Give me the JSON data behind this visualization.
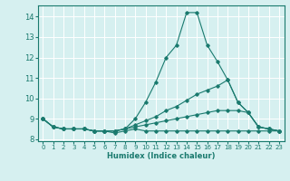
{
  "title": "",
  "xlabel": "Humidex (Indice chaleur)",
  "bg_color": "#d6f0f0",
  "line_color": "#1a7a6e",
  "grid_color": "#ffffff",
  "xlim": [
    -0.5,
    23.5
  ],
  "ylim": [
    7.9,
    14.55
  ],
  "xticks": [
    0,
    1,
    2,
    3,
    4,
    5,
    6,
    7,
    8,
    9,
    10,
    11,
    12,
    13,
    14,
    15,
    16,
    17,
    18,
    19,
    20,
    21,
    22,
    23
  ],
  "yticks": [
    8,
    9,
    10,
    11,
    12,
    13,
    14
  ],
  "series": [
    [
      9.0,
      8.6,
      8.5,
      8.5,
      8.5,
      8.4,
      8.4,
      8.3,
      8.4,
      8.5,
      8.4,
      8.4,
      8.4,
      8.4,
      8.4,
      8.4,
      8.4,
      8.4,
      8.4,
      8.4,
      8.4,
      8.4,
      8.4,
      8.4
    ],
    [
      9.0,
      8.6,
      8.5,
      8.5,
      8.5,
      8.4,
      8.4,
      8.4,
      8.5,
      9.0,
      9.8,
      10.8,
      12.0,
      12.6,
      14.2,
      14.2,
      12.6,
      11.8,
      10.9,
      9.8,
      9.3,
      8.6,
      8.5,
      8.4
    ],
    [
      9.0,
      8.6,
      8.5,
      8.5,
      8.5,
      8.4,
      8.4,
      8.4,
      8.5,
      8.7,
      8.9,
      9.1,
      9.4,
      9.6,
      9.9,
      10.2,
      10.4,
      10.6,
      10.9,
      9.8,
      9.3,
      8.6,
      8.5,
      8.4
    ],
    [
      9.0,
      8.6,
      8.5,
      8.5,
      8.5,
      8.4,
      8.4,
      8.4,
      8.5,
      8.6,
      8.7,
      8.8,
      8.9,
      9.0,
      9.1,
      9.2,
      9.3,
      9.4,
      9.4,
      9.4,
      9.3,
      8.6,
      8.5,
      8.4
    ]
  ]
}
